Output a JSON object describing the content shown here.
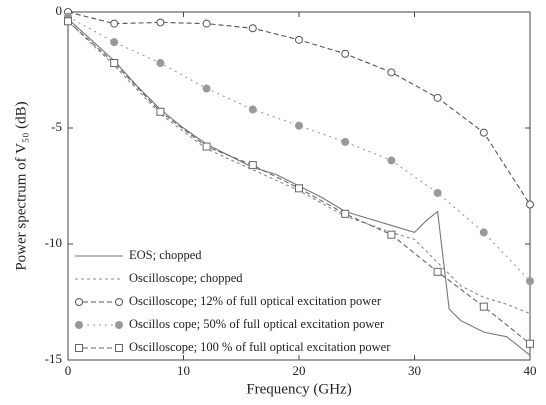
{
  "chart_data": {
    "type": "line",
    "x_label": "Frequency (GHz)",
    "y_label": "Power spectrum of V₅₀ (dB)",
    "xlim": [
      0,
      40
    ],
    "ylim": [
      -15,
      0
    ],
    "xticks": [
      0,
      10,
      20,
      30,
      40
    ],
    "yticks": [
      0,
      -5,
      -10,
      -15
    ],
    "legend": "lower left",
    "series": [
      {
        "name": "EOS; chopped",
        "color": "#777",
        "dash": "solid",
        "marker": "none",
        "x": [
          0,
          2,
          4,
          6,
          8,
          10,
          12,
          14,
          16,
          18,
          20,
          22,
          24,
          26,
          28,
          30,
          31,
          32,
          33,
          34,
          36,
          38,
          40
        ],
        "values": [
          -0.3,
          -1.2,
          -2.1,
          -3.2,
          -4.2,
          -5.0,
          -5.7,
          -6.2,
          -6.7,
          -7.0,
          -7.5,
          -8.0,
          -8.6,
          -8.9,
          -9.2,
          -9.5,
          -9.0,
          -8.6,
          -12.8,
          -13.3,
          -13.8,
          -14.0,
          -14.8
        ]
      },
      {
        "name": "Oscilloscope; chopped",
        "color": "#888",
        "dash": "3 3",
        "marker": "none",
        "x": [
          0,
          4,
          8,
          12,
          16,
          20,
          24,
          28,
          30,
          32,
          34,
          36,
          38,
          40
        ],
        "values": [
          -0.4,
          -2.3,
          -4.4,
          -5.9,
          -6.8,
          -7.7,
          -8.8,
          -9.5,
          -9.8,
          -10.8,
          -11.8,
          -12.3,
          -12.6,
          -13.0
        ]
      },
      {
        "name": "Oscilloscope; 12%  of full optical  excitation power",
        "color": "#555",
        "dash": "5 3",
        "marker": "circle-open",
        "x": [
          0,
          4,
          8,
          12,
          16,
          20,
          24,
          28,
          32,
          36,
          40
        ],
        "values": [
          0,
          -0.5,
          -0.45,
          -0.5,
          -0.7,
          -1.2,
          -1.8,
          -2.6,
          -3.7,
          -5.2,
          -8.3
        ]
      },
      {
        "name": "Oscillos cope; 50% of full optical excitation power",
        "color": "#999",
        "dash": "2 4",
        "marker": "circle-filled",
        "x": [
          0,
          4,
          8,
          12,
          16,
          20,
          24,
          28,
          32,
          36,
          40
        ],
        "values": [
          -0.2,
          -1.3,
          -2.2,
          -3.3,
          -4.2,
          -4.9,
          -5.6,
          -6.4,
          -7.8,
          -9.5,
          -11.6
        ]
      },
      {
        "name": "Oscilloscope; 100 % of full optical excitation power",
        "color": "#666",
        "dash": "5 3",
        "marker": "square-open",
        "x": [
          0,
          4,
          8,
          12,
          16,
          20,
          24,
          28,
          32,
          36,
          40
        ],
        "values": [
          -0.4,
          -2.2,
          -4.3,
          -5.8,
          -6.6,
          -7.6,
          -8.7,
          -9.6,
          -11.2,
          -12.7,
          -14.3
        ]
      }
    ]
  }
}
